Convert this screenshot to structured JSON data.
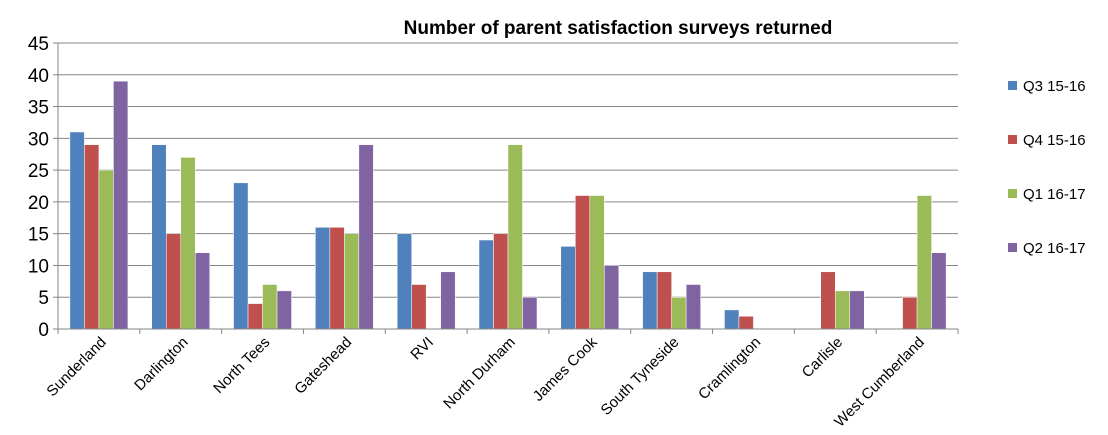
{
  "chart_data": {
    "type": "bar",
    "title": "Number of parent satisfaction surveys returned",
    "xlabel": "",
    "ylabel": "",
    "ylim": [
      0,
      45
    ],
    "yticks": [
      0,
      5,
      10,
      15,
      20,
      25,
      30,
      35,
      40,
      45
    ],
    "grid": true,
    "legend_position": "right",
    "categories": [
      "Sunderland",
      "Darlington",
      "North Tees",
      "Gateshead",
      "RVI",
      "North Durham",
      "James Cook",
      "South Tyneside",
      "Cramlington",
      "Carlisle",
      "West Cumberland"
    ],
    "series": [
      {
        "name": "Q3 15-16",
        "color": "#4F81BD",
        "values": [
          31,
          29,
          23,
          16,
          15,
          14,
          13,
          9,
          3,
          null,
          null
        ]
      },
      {
        "name": "Q4 15-16",
        "color": "#C0504D",
        "values": [
          29,
          15,
          4,
          16,
          7,
          15,
          21,
          9,
          2,
          9,
          5
        ]
      },
      {
        "name": "Q1 16-17",
        "color": "#9BBB59",
        "values": [
          25,
          27,
          7,
          15,
          null,
          29,
          21,
          5,
          null,
          6,
          21
        ]
      },
      {
        "name": "Q2 16-17",
        "color": "#8064A2",
        "values": [
          39,
          12,
          6,
          29,
          9,
          5,
          10,
          7,
          null,
          6,
          12
        ]
      }
    ]
  }
}
